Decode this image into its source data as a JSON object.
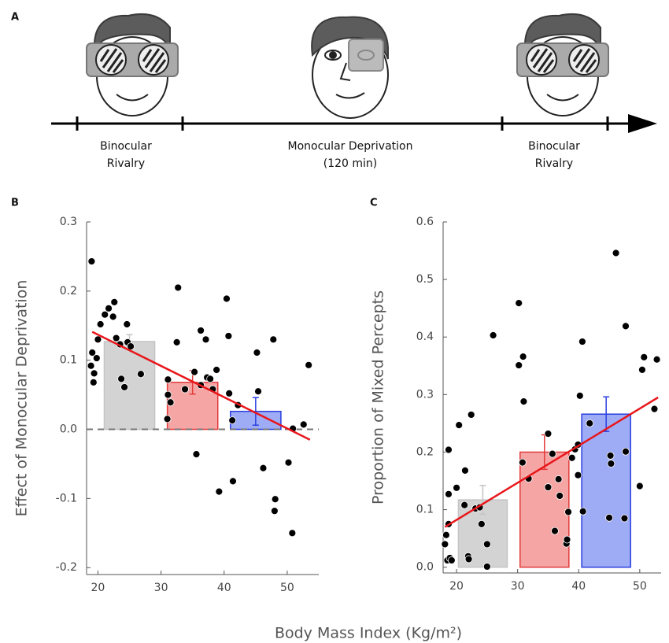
{
  "panel_labels": [
    "A",
    "B",
    "C"
  ],
  "panel_a": {
    "stages": [
      {
        "lines": [
          "Binocular",
          "Rivalry"
        ]
      },
      {
        "lines": [
          "Monocular Deprivation",
          "(120 min)"
        ]
      },
      {
        "lines": [
          "Binocular",
          "Rivalry"
        ]
      }
    ]
  },
  "x_label": "Body Mass Index (Kg/m²)",
  "chart_data": [
    {
      "type": "scatter",
      "ylabel": "Effect of Monocular Deprivation",
      "xlim": [
        18.2,
        55
      ],
      "xticks": [
        20,
        30,
        40,
        50
      ],
      "ylim": [
        -0.21,
        0.3
      ],
      "yticks": [
        -0.2,
        -0.1,
        {
          "value": 0,
          "label": "0.0"
        },
        0.1,
        0.2,
        0.3
      ],
      "hline": 0,
      "bars": {
        "x": [
          25,
          35,
          45
        ],
        "values": [
          0.127,
          0.068,
          0.026
        ],
        "errors": [
          0.01,
          0.017,
          0.02
        ],
        "colors": [
          "#d3d3d3",
          "#f6a5a5",
          "#9eabf5"
        ],
        "edge_colors": [
          "#c4c4c4",
          "#e23a3a",
          "#2a3fe0"
        ]
      },
      "fit": {
        "x": [
          19.1,
          53.6
        ],
        "values": [
          0.141,
          -0.015
        ],
        "color": "#e8161b"
      },
      "points": {
        "color": "#000000",
        "x": [
          19.0,
          19.1,
          18.9,
          19.4,
          19.3,
          19.8,
          20,
          20.4,
          21.1,
          21.7,
          22.6,
          22.4,
          22.9,
          23.5,
          24.6,
          24.7,
          25.2,
          23.7,
          24.2,
          26.8,
          32.7,
          32.5,
          31.1,
          31.1,
          31.5,
          31,
          35.6,
          33.8,
          35.3,
          36.3,
          36.3,
          37.1,
          37.3,
          37.8,
          38.2,
          38.8,
          39.2,
          40.4,
          40.7,
          40.8,
          41.3,
          41.4,
          42.2,
          45.2,
          45.4,
          46.2,
          47.8,
          48.1,
          48,
          50.9,
          50.2,
          50.8,
          52.6,
          53.4
        ],
        "y": [
          0.243,
          0.111,
          0.092,
          0.081,
          0.068,
          0.103,
          0.13,
          0.152,
          0.166,
          0.175,
          0.184,
          0.163,
          0.132,
          0.123,
          0.152,
          0.126,
          0.12,
          0.073,
          0.061,
          0.08,
          0.205,
          0.126,
          0.072,
          0.05,
          0.039,
          0.015,
          -0.036,
          0.058,
          0.083,
          0.143,
          0.064,
          0.13,
          0.075,
          0.073,
          0.058,
          0.086,
          -0.09,
          0.189,
          0.135,
          0.052,
          0.013,
          -0.075,
          0.035,
          0.111,
          0.055,
          -0.056,
          0.13,
          -0.101,
          -0.118,
          0.001,
          -0.048,
          -0.15,
          0.007,
          0.093
        ]
      }
    },
    {
      "type": "scatter",
      "ylabel": "Proportion of Mixed Percepts",
      "xlim": [
        17.8,
        53.5
      ],
      "xticks": [
        20,
        30,
        40,
        50
      ],
      "ylim": [
        -0.01,
        0.6
      ],
      "yticks": [
        {
          "value": 0,
          "label": "0.0"
        },
        0.1,
        0.2,
        0.3,
        0.4,
        0.5,
        0.6
      ],
      "bars": {
        "x": [
          24.3,
          34.4,
          44.5
        ],
        "values": [
          0.117,
          0.2,
          0.266
        ],
        "errors": [
          0.025,
          0.03,
          0.03
        ],
        "colors": [
          "#d3d3d3",
          "#f6a5a5",
          "#9eabf5"
        ],
        "edge_colors": [
          "#c4c4c4",
          "#e23a3a",
          "#2a3fe0"
        ]
      },
      "fit": {
        "x": [
          18.1,
          53
        ],
        "values": [
          0.07,
          0.295
        ],
        "color": "#e8161b"
      },
      "points": {
        "color": "#000000",
        "x": [
          18.1,
          18.3,
          18.7,
          18.5,
          18.9,
          19.2,
          18.7,
          18.7,
          20,
          20.4,
          21.4,
          21.3,
          21.9,
          22,
          22.4,
          23.1,
          23.8,
          24.1,
          25,
          25,
          26,
          30.2,
          30.2,
          30.9,
          31,
          30.8,
          31.8,
          35,
          35,
          35.7,
          36.1,
          36.7,
          36.9,
          38,
          38.1,
          38.3,
          38.9,
          39.4,
          39.9,
          39.9,
          40.2,
          40.6,
          40.7,
          41.8,
          46.1,
          45.2,
          45.3,
          45,
          47.7,
          47.7,
          47.5,
          50,
          50.4,
          50.7,
          52.8,
          52.4
        ],
        "y": [
          0.04,
          0.056,
          0.075,
          0.012,
          0.016,
          0.012,
          0.127,
          0.204,
          0.138,
          0.247,
          0.168,
          0.108,
          0.019,
          0.014,
          0.265,
          0.102,
          0.104,
          0.075,
          0.04,
          0.001,
          0.403,
          0.459,
          0.351,
          0.366,
          0.288,
          0.182,
          0.154,
          0.139,
          0.232,
          0.197,
          0.063,
          0.153,
          0.124,
          0.041,
          0.048,
          0.096,
          0.19,
          0.205,
          0.16,
          0.213,
          0.298,
          0.392,
          0.097,
          0.25,
          0.546,
          0.194,
          0.18,
          0.086,
          0.419,
          0.201,
          0.085,
          0.141,
          0.343,
          0.365,
          0.361,
          0.275
        ]
      }
    }
  ]
}
